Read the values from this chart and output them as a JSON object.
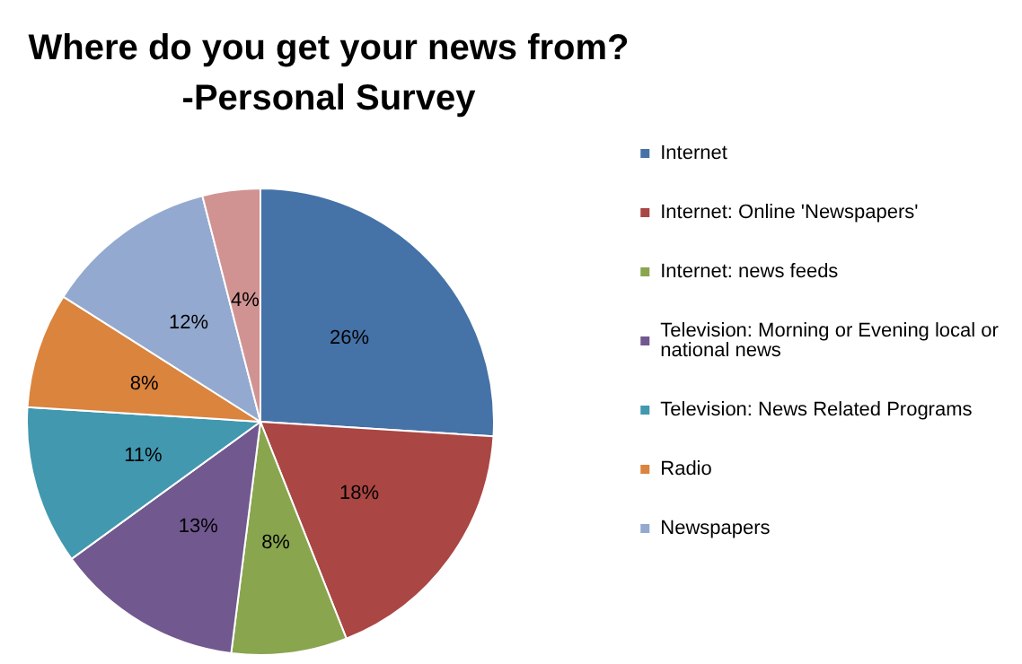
{
  "chart_data": {
    "type": "pie",
    "title": "Where do you get your news from?\n-Personal Survey",
    "categories": [
      "Internet",
      "Internet: Online 'Newspapers'",
      "Internet: news feeds",
      "Television: Morning or Evening local or national news",
      "Television: News Related Programs",
      "Radio",
      "Newspapers",
      null
    ],
    "values": [
      26,
      18,
      8,
      13,
      11,
      8,
      12,
      4
    ],
    "value_labels": [
      "26%",
      "18%",
      "8%",
      "13%",
      "11%",
      "8%",
      "12%",
      "4%"
    ],
    "colors": [
      "#4572a7",
      "#aa4643",
      "#89a54e",
      "#71588f",
      "#4198af",
      "#db843d",
      "#93a9cf",
      "#d19392"
    ],
    "legend": "right"
  }
}
